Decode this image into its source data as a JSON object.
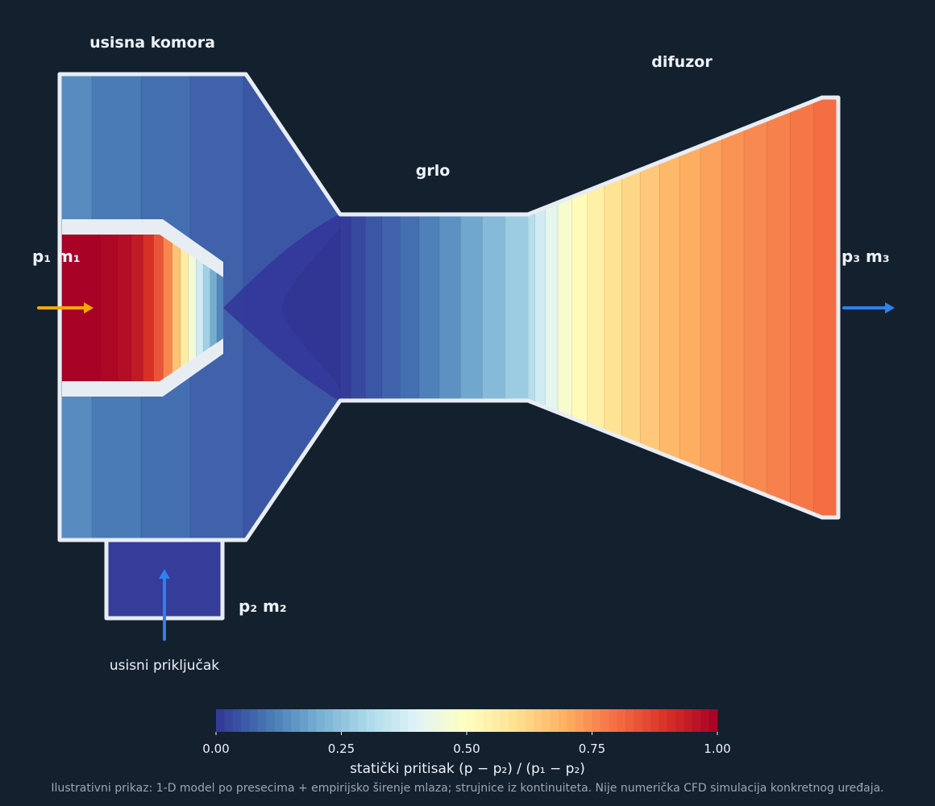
{
  "labels": {
    "suction_chamber": "usisna komora",
    "throat": "grlo",
    "diffuser": "difuzor",
    "suction_port": "usisni priključak",
    "inlet_primary": "p₁  m₁",
    "inlet_secondary": "p₂  m₂",
    "outlet": "p₃  m₃"
  },
  "colorbar": {
    "title": "statički pritisak (p − p₂) / (p₁ − p₂)",
    "min": 0,
    "max": 1,
    "ticks": [
      "0.00",
      "0.25",
      "0.50",
      "0.75",
      "1.00"
    ],
    "colors": [
      "#313695",
      "#4575b4",
      "#74add1",
      "#abd9e9",
      "#e0f3f8",
      "#ffffbf",
      "#fee090",
      "#fdae61",
      "#f46d43",
      "#d73027",
      "#a50026"
    ]
  },
  "footnote": "Ilustrativni prikaz: 1-D model po presecima + empirijsko širenje mlaza; strujnice iz kontinuiteta. Nije numerička CFD simulacija konkretnog uređaja.",
  "colors": {
    "background": "#13202e",
    "wall": "#e8edf4",
    "primary_arrow": "#f5a800",
    "flow_arrow": "#2f80ed"
  },
  "pressure_levels": {
    "nozzle": [
      0.995,
      0.985,
      0.97,
      0.945,
      0.9,
      0.84,
      0.76,
      0.66,
      0.56,
      0.46,
      0.37,
      0.28,
      0.2,
      0.13
    ],
    "chamber": [
      0.14,
      0.11,
      0.09,
      0.07,
      0.05
    ],
    "throat": [
      0.01,
      0.03,
      0.05,
      0.07,
      0.09,
      0.12,
      0.15,
      0.19,
      0.23,
      0.27
    ],
    "diffuser": [
      0.32,
      0.37,
      0.42,
      0.47,
      0.51,
      0.55,
      0.59,
      0.62,
      0.65,
      0.68,
      0.7,
      0.72,
      0.74,
      0.755,
      0.77,
      0.785,
      0.8
    ]
  }
}
